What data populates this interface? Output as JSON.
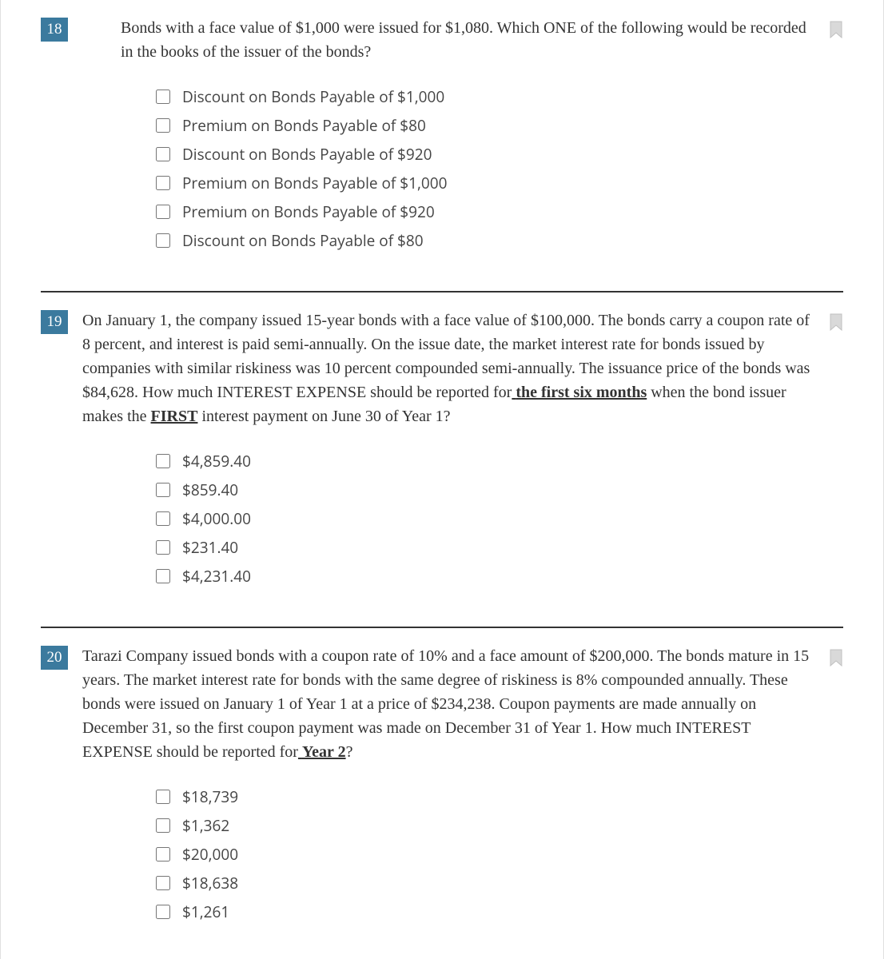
{
  "colors": {
    "badge_bg": "#3b7a9e",
    "badge_text": "#ffffff",
    "text": "#333333",
    "option_text": "#444444",
    "bookmark": "#c9c9c9",
    "divider": "#333333"
  },
  "questions": [
    {
      "number": "18",
      "prompt_html": "Bonds with a face value of $1,000 were issued for $1,080. Which ONE of the following would be recorded in the books of the issuer of the bonds?",
      "options": [
        "Discount on Bonds Payable of $1,000",
        "Premium on Bonds Payable of $80",
        "Discount on Bonds Payable of $920",
        "Premium on Bonds Payable of $1,000",
        "Premium on Bonds Payable of $920",
        "Discount on Bonds Payable of $80"
      ]
    },
    {
      "number": "19",
      "prompt_html": "On January 1, the company issued 15-year bonds with a face value of $100,000. The bonds carry a coupon rate of 8 percent, and interest is paid semi-annually. On the issue date, the market interest rate for bonds issued by companies with similar riskiness was 10 percent compounded semi-annually. The issuance price of the bonds was $84,628. How much INTEREST EXPENSE should be reported for<span class=\"underline\"> <b>the first six months</b></span> when the bond issuer makes the <span class=\"underline\"><b>FIRST</b></span> interest payment on June 30 of Year 1?",
      "options": [
        "$4,859.40",
        "$859.40",
        "$4,000.00",
        "$231.40",
        "$4,231.40"
      ]
    },
    {
      "number": "20",
      "prompt_html": "Tarazi Company issued bonds with a coupon rate of 10% and a face amount of $200,000.  The bonds mature in 15 years.  The market interest rate for bonds with the same degree of riskiness is 8% compounded annually.  These bonds were issued on January 1 of Year 1 at a price of $234,238.  Coupon payments are made annually on December 31, so the first coupon payment was made on December 31 of Year 1.  How much INTEREST EXPENSE should be reported for<span class=\"underline\"> <b>Year 2</b></span>?",
      "options": [
        "$18,739",
        "$1,362",
        "$20,000",
        "$18,638",
        "$1,261"
      ]
    }
  ]
}
